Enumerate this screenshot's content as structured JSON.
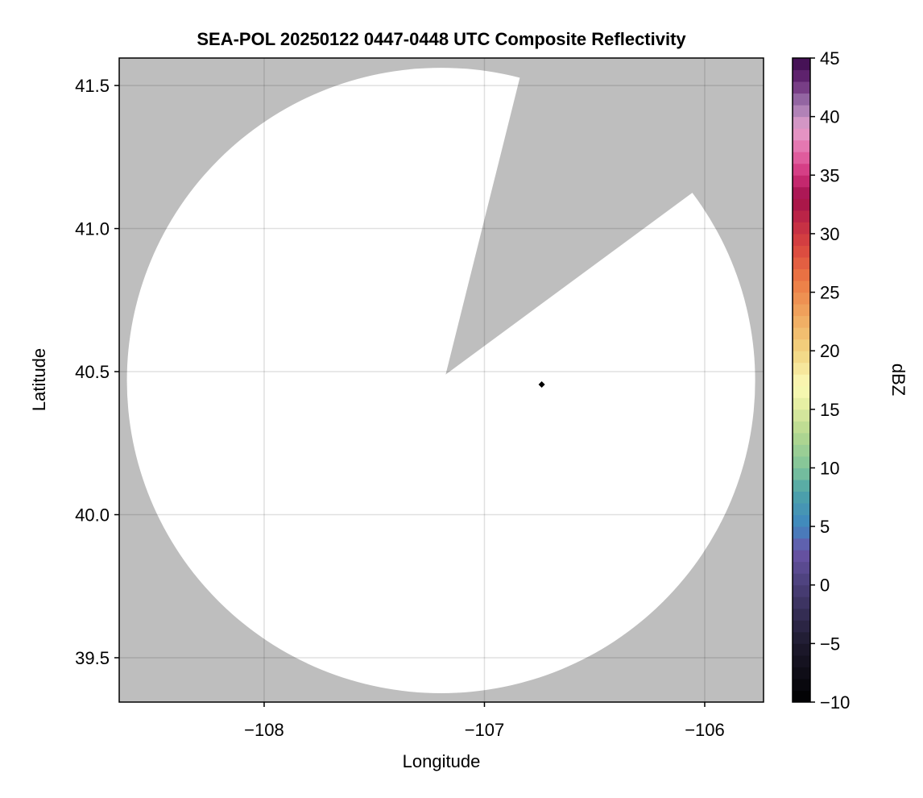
{
  "chart_data": {
    "type": "heatmap",
    "title": "SEA-POL 20250122 0447-0448 UTC Composite Reflectivity",
    "xlabel": "Longitude",
    "ylabel": "Latitude",
    "xlim": [
      -108.658,
      -105.733
    ],
    "ylim": [
      39.345,
      41.596
    ],
    "xticks": [
      -108,
      -107,
      -106
    ],
    "xtick_labels": [
      "−108",
      "−107",
      "−106"
    ],
    "yticks": [
      39.5,
      40.0,
      40.5,
      41.0,
      41.5
    ],
    "ytick_labels": [
      "39.5",
      "40.0",
      "40.5",
      "41.0",
      "41.5"
    ],
    "grid": true,
    "missing_color": "#bebebe",
    "radar_coverage": {
      "center": {
        "lon": -107.197,
        "lat": 40.469
      },
      "radius_lon": 1.426,
      "radius_lat": 1.093,
      "fill": "#ffffff",
      "blocked_sector": {
        "vertex": {
          "lon": -107.176,
          "lat": 40.49
        },
        "edge1": {
          "lon": -106.84,
          "lat": 41.525
        },
        "edge2": {
          "lon": -106.06,
          "lat": 41.123
        }
      }
    },
    "points": [
      {
        "lon": -106.74,
        "lat": 40.455,
        "marker": "diamond",
        "color": "#000000"
      }
    ],
    "colorbar": {
      "label": "dBZ",
      "range": [
        -10,
        45
      ],
      "step": 1,
      "ticks": [
        -10,
        -5,
        0,
        5,
        10,
        15,
        20,
        25,
        30,
        35,
        40,
        45
      ],
      "tick_labels": [
        "−10",
        "−5",
        "0",
        "5",
        "10",
        "15",
        "20",
        "25",
        "30",
        "35",
        "40",
        "45"
      ],
      "stops": [
        [
          -10,
          "#000000"
        ],
        [
          -5,
          "#1e1a2e"
        ],
        [
          0,
          "#4a3f78"
        ],
        [
          3,
          "#6a55a8"
        ],
        [
          5,
          "#3f86c0"
        ],
        [
          8,
          "#4da4a8"
        ],
        [
          10,
          "#7fc49a"
        ],
        [
          13,
          "#b5d88f"
        ],
        [
          16,
          "#f0f3a8"
        ],
        [
          17,
          "#fafab8"
        ],
        [
          20,
          "#f2d480"
        ],
        [
          23,
          "#f0a860"
        ],
        [
          26,
          "#ec7a44"
        ],
        [
          29,
          "#d9443f"
        ],
        [
          32,
          "#b41e48"
        ],
        [
          33,
          "#a0104a"
        ],
        [
          35,
          "#d0307a"
        ],
        [
          37,
          "#e46aa8"
        ],
        [
          39,
          "#e4a0cc"
        ],
        [
          41,
          "#a078b0"
        ],
        [
          43,
          "#6a2a78"
        ],
        [
          45,
          "#3a0a4a"
        ]
      ]
    }
  }
}
